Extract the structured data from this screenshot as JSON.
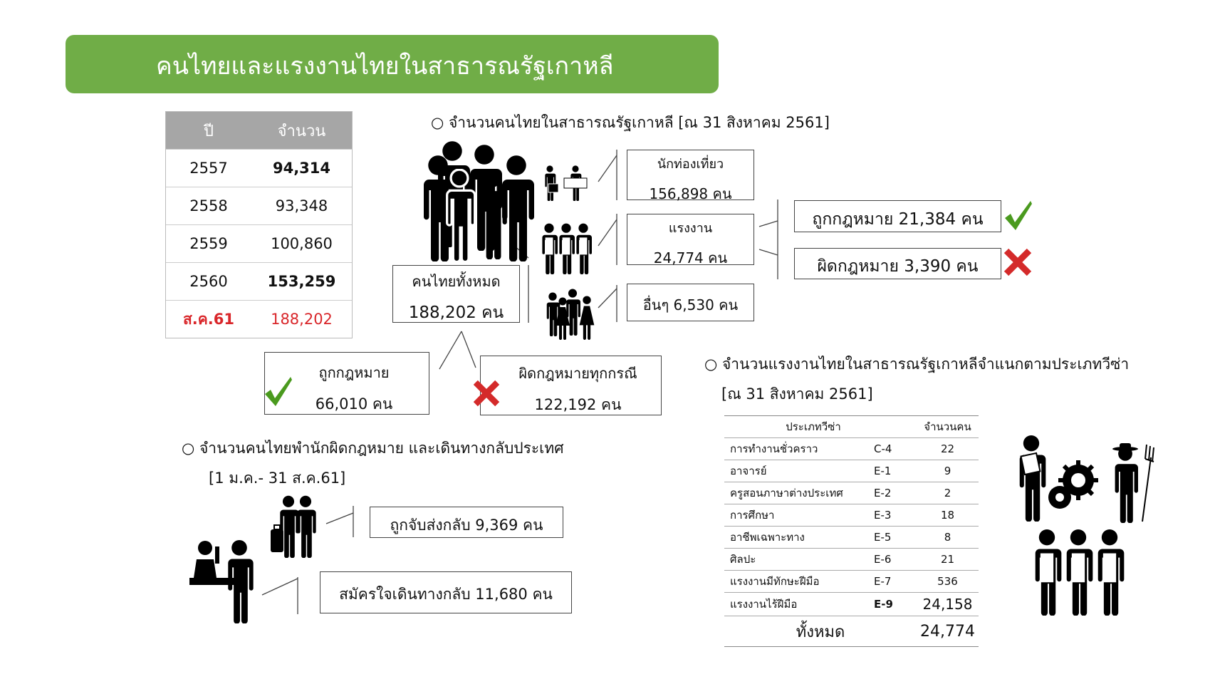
{
  "title": "คนไทยและแรงงานไทยในสาธารณรัฐเกาหลี",
  "colors": {
    "title_bg": "#70ad47",
    "highlight_red": "#d9262a",
    "table_header_bg": "#a6a6a6",
    "check_green": "#4a9a1e",
    "cross_red": "#d42a2a"
  },
  "year_table": {
    "headers": [
      "ปี",
      "จำนวน"
    ],
    "rows": [
      {
        "year": "2557",
        "count": "94,314"
      },
      {
        "year": "2558",
        "count": "93,348"
      },
      {
        "year": "2559",
        "count": "100,860"
      },
      {
        "year": "2560",
        "count": "153,259"
      },
      {
        "year": "ส.ค.61",
        "count": "188,202"
      }
    ]
  },
  "section1": {
    "heading": "○ จำนวนคนไทยในสาธารณรัฐเกาหลี   [ณ 31 สิงหาคม 2561]",
    "total": {
      "label": "คนไทยทั้งหมด",
      "value": "188,202 คน"
    },
    "tourist": {
      "label": "นักท่องเที่ยว",
      "value": "156,898 คน"
    },
    "labor": {
      "label": "แรงงาน",
      "value": "24,774 คน"
    },
    "other": {
      "label": "อื่นๆ  6,530 คน"
    },
    "labor_legal": "ถูกกฎหมาย 21,384 คน",
    "labor_illegal": "ผิดกฎหมาย 3,390 คน",
    "legal_total": {
      "label": "ถูกกฎหมาย",
      "value": "66,010 คน"
    },
    "illegal_total": {
      "label": "ผิดกฎหมายทุกกรณี",
      "value": "122,192 คน"
    }
  },
  "section2": {
    "heading": "○  จำนวนคนไทยพำนักผิดกฎหมาย  และเดินทางกลับประเทศ",
    "period": "[1 ม.ค.- 31 ส.ค.61]",
    "deported": "ถูกจับส่งกลับ  9,369 คน",
    "voluntary": "สมัครใจเดินทางกลับ  11,680 คน"
  },
  "section3": {
    "heading": "○ จำนวนแรงงานไทยในสาธารณรัฐเกาหลีจำแนกตามประเภทวีซ่า",
    "date": "[ณ 31 สิงหาคม 2561]",
    "headers": [
      "ประเภทวีซ่า",
      "จำนวนคน"
    ],
    "rows": [
      {
        "name": "การทำงานชั่วคราว",
        "code": "C-4",
        "count": "22"
      },
      {
        "name": "อาจารย์",
        "code": "E-1",
        "count": "9"
      },
      {
        "name": "ครูสอนภาษาต่างประเทศ",
        "code": "E-2",
        "count": "2"
      },
      {
        "name": "การศึกษา",
        "code": "E-3",
        "count": "18"
      },
      {
        "name": "อาชีพเฉพาะทาง",
        "code": "E-5",
        "count": "8"
      },
      {
        "name": "ศิลปะ",
        "code": "E-6",
        "count": "21"
      },
      {
        "name": "แรงงานมีทักษะฝีมือ",
        "code": "E-7",
        "count": "536"
      },
      {
        "name": "แรงงานไร้ฝีมือ",
        "code": "E-9",
        "count": "24,158"
      }
    ],
    "total_label": "ทั้งหมด",
    "total_value": "24,774"
  }
}
